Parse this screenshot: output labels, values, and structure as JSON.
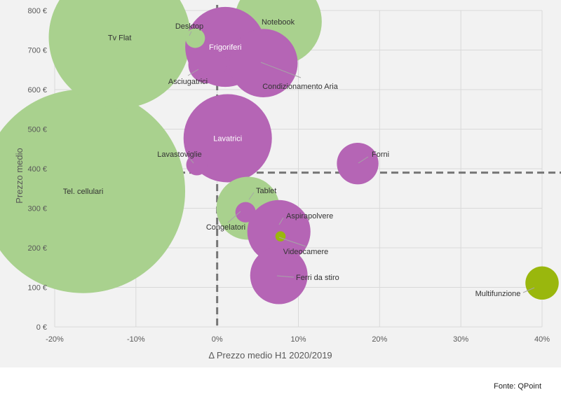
{
  "chart_data": {
    "type": "scatter",
    "subtype": "bubble",
    "xlabel": "Δ Prezzo medio H1 2020/2019",
    "ylabel": "Prezzo medio",
    "xlim": [
      -0.2,
      0.4
    ],
    "ylim": [
      0,
      800
    ],
    "x_ticks": [
      "-20%",
      "-10%",
      "0%",
      "10%",
      "20%",
      "30%",
      "40%"
    ],
    "y_ticks": [
      "0 €",
      "100 €",
      "200 €",
      "300 €",
      "400 €",
      "500 €",
      "600 €",
      "700 €",
      "800 €"
    ],
    "grid": true,
    "reference_lines": {
      "x": 0.0,
      "y": 390,
      "style": "dashed"
    },
    "colors": {
      "green": "#a9d18e",
      "purple": "#b565b5",
      "olive": "#9ab70d"
    },
    "series": [
      {
        "label": "Tv Flat",
        "x": -0.12,
        "y": 732,
        "size": 5800,
        "color": "green",
        "label_style": "inside"
      },
      {
        "label": "Notebook",
        "x": 0.075,
        "y": 772,
        "size": 2200,
        "color": "green",
        "label_style": "inside"
      },
      {
        "label": "Desktop",
        "x": -0.027,
        "y": 730,
        "size": 110,
        "color": "green",
        "label_style": "leader"
      },
      {
        "label": "Frigoriferi",
        "x": 0.01,
        "y": 708,
        "size": 1850,
        "color": "purple",
        "label_style": "inside"
      },
      {
        "label": "Asciugatrici",
        "x": -0.012,
        "y": 664,
        "size": 420,
        "color": "purple",
        "label_style": "leader"
      },
      {
        "label": "Condizionamento Aria",
        "x": 0.057,
        "y": 667,
        "size": 1350,
        "color": "purple",
        "label_style": "leader"
      },
      {
        "label": "Lavatrici",
        "x": 0.013,
        "y": 477,
        "size": 2250,
        "color": "purple",
        "label_style": "inside"
      },
      {
        "label": "Lavastoviglie",
        "x": -0.025,
        "y": 410,
        "size": 130,
        "color": "purple",
        "label_style": "leader"
      },
      {
        "label": "Forni",
        "x": 0.173,
        "y": 413,
        "size": 500,
        "color": "purple",
        "label_style": "leader"
      },
      {
        "label": "Tel. cellulari",
        "x": -0.165,
        "y": 343,
        "size": 12000,
        "color": "green",
        "label_style": "inside"
      },
      {
        "label": "Tablet",
        "x": 0.038,
        "y": 300,
        "size": 1150,
        "color": "green",
        "label_style": "leader"
      },
      {
        "label": "Congelatori",
        "x": 0.035,
        "y": 290,
        "size": 120,
        "color": "purple",
        "label_style": "leader"
      },
      {
        "label": "Aspirapolvere",
        "x": 0.076,
        "y": 241,
        "size": 1150,
        "color": "purple",
        "label_style": "leader"
      },
      {
        "label": "Videocamere",
        "x": 0.078,
        "y": 229,
        "size": 30,
        "color": "olive",
        "label_style": "leader"
      },
      {
        "label": "Ferri da stiro",
        "x": 0.076,
        "y": 130,
        "size": 950,
        "color": "purple",
        "label_style": "leader"
      },
      {
        "label": "Multifunzione",
        "x": 0.4,
        "y": 111,
        "size": 320,
        "color": "olive",
        "label_style": "leader"
      }
    ]
  },
  "source": "Fonte: QPoint"
}
